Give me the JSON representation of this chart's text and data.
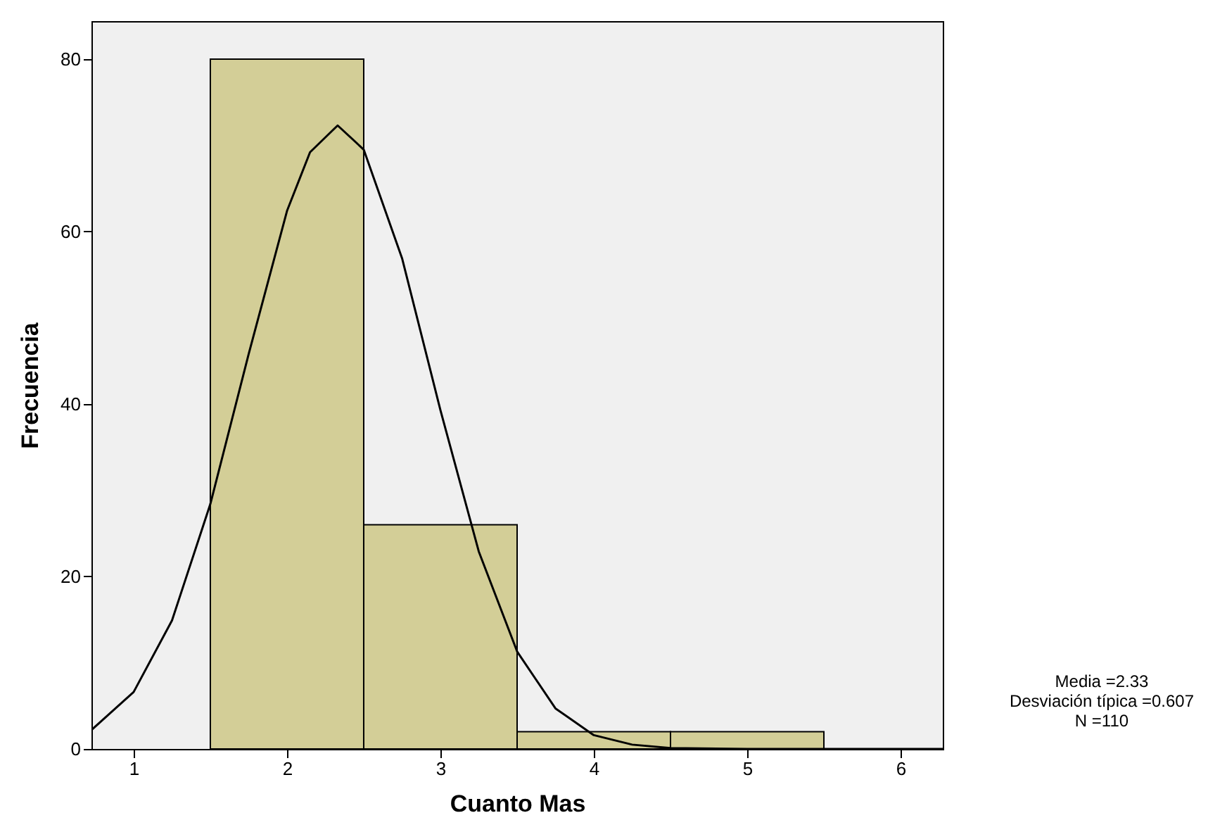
{
  "chart_data": {
    "type": "histogram",
    "xlabel": "Cuanto Mas",
    "ylabel": "Frecuencia",
    "bins": [
      1.5,
      2.5,
      3.5,
      4.5,
      5.5
    ],
    "values": [
      80,
      26,
      2,
      2
    ],
    "color": "#d3ce97",
    "series": [
      {
        "type": "line",
        "color": "#000000",
        "x": [
          0.725,
          1.0,
          1.25,
          1.5,
          1.75,
          2.0,
          2.15,
          2.33,
          2.5,
          2.75,
          3.0,
          3.25,
          3.5,
          3.75,
          4.0,
          4.25,
          4.5,
          5.0,
          5.5,
          6.0,
          6.275
        ],
        "values": [
          2.2,
          6.6,
          14.9,
          28.4,
          45.8,
          62.4,
          69.2,
          72.3,
          69.5,
          56.9,
          39.3,
          22.9,
          11.3,
          4.7,
          1.6,
          0.5,
          0.1,
          0,
          0,
          0,
          0
        ]
      }
    ],
    "xlim": [
      0.725,
      6.275
    ],
    "xticks": [
      1,
      2,
      3,
      4,
      5,
      6
    ],
    "ylim": [
      0,
      84.4
    ],
    "yticks": [
      0,
      20,
      40,
      60,
      80
    ],
    "grid": false,
    "annotations": [
      "Media =2.33",
      "Desviación típica =0.607",
      "N =110"
    ]
  }
}
